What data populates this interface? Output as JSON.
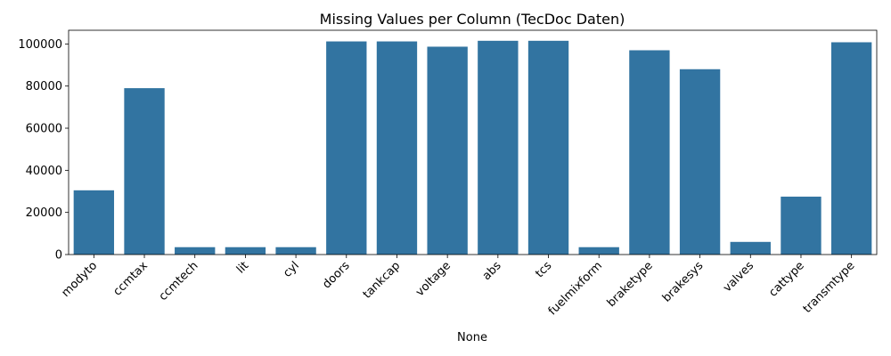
{
  "chart_data": {
    "type": "bar",
    "title": "Missing Values per Column (TecDoc Daten)",
    "xlabel": "None",
    "ylabel": "",
    "categories": [
      "modyto",
      "ccmtax",
      "ccmtech",
      "lit",
      "cyl",
      "doors",
      "tankcap",
      "voltage",
      "abs",
      "tcs",
      "fuelmixform",
      "braketype",
      "brakesys",
      "valves",
      "cattype",
      "transmtype"
    ],
    "values": [
      30500,
      79000,
      3500,
      3500,
      3500,
      101200,
      101200,
      98700,
      101500,
      101500,
      3500,
      97000,
      88000,
      6000,
      27500,
      100800
    ],
    "ylim": [
      0,
      106500
    ],
    "yticks": [
      0,
      20000,
      40000,
      60000,
      80000,
      100000
    ],
    "bar_color": "#3274a1",
    "grid": false,
    "legend": "none"
  }
}
